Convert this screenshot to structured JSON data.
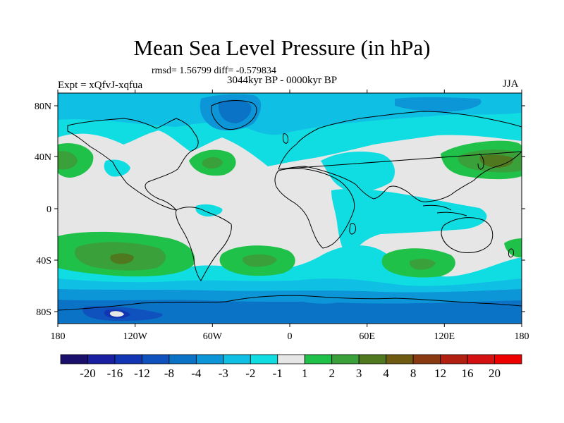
{
  "title": "Mean Sea Level Pressure (in hPa)",
  "stats_line": "rmsd= 1.56799  diff= -0.579834",
  "period": "3044kyr BP - 0000kyr BP",
  "experiment": "Expt = xQfvJ-xqfua",
  "season": "JJA",
  "lat_ticks": [
    "80N",
    "40N",
    "0",
    "40S",
    "80S"
  ],
  "lon_ticks": [
    "180",
    "120W",
    "60W",
    "0",
    "60E",
    "120E",
    "180"
  ],
  "colorbar": {
    "labels": [
      "-20",
      "-16",
      "-12",
      "-8",
      "-4",
      "-3",
      "-2",
      "-1",
      "1",
      "2",
      "3",
      "4",
      "8",
      "12",
      "16",
      "20"
    ],
    "colors": [
      "#1a0f6b",
      "#191fa0",
      "#1235b4",
      "#1052bd",
      "#0b73c6",
      "#0c96d7",
      "#10c0e4",
      "#10dde2",
      "#e6e6e6",
      "#1fc148",
      "#39a03a",
      "#50791f",
      "#6e5a10",
      "#8a3a10",
      "#b01f10",
      "#d41010",
      "#ee0000"
    ]
  },
  "map_colors": {
    "neutral": "#e6e6e6",
    "minus1": "#10dde2",
    "minus2": "#10c0e4",
    "minus3": "#0c96d7",
    "minus4": "#0b73c6",
    "minus8": "#1052bd",
    "minus12": "#1235b4",
    "plus2": "#1fc148",
    "plus3": "#39a03a",
    "plus4": "#50791f",
    "coast": "#000000"
  }
}
